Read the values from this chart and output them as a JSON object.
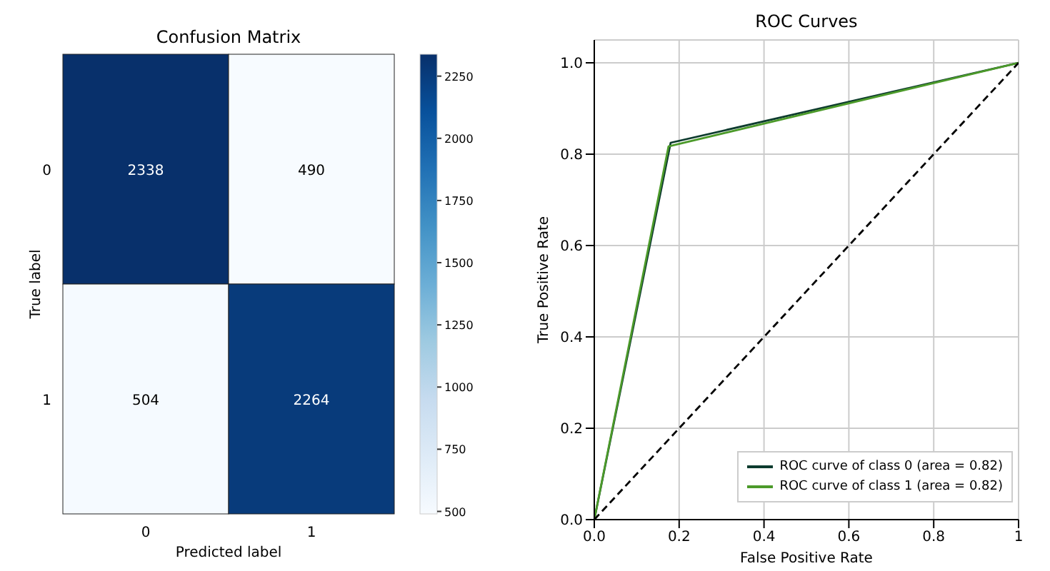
{
  "chart_data": [
    {
      "type": "heatmap",
      "title": "Confusion Matrix",
      "xlabel": "Predicted label",
      "ylabel": "True label",
      "categories": [
        "0",
        "1"
      ],
      "y_categories": [
        "0",
        "1"
      ],
      "cells": [
        [
          2338,
          490
        ],
        [
          504,
          2264
        ]
      ],
      "data_labels": true,
      "clim": [
        490,
        2338
      ],
      "cticks": [
        500,
        750,
        1000,
        1250,
        1500,
        1750,
        2000,
        2250
      ]
    },
    {
      "type": "line",
      "title": "ROC Curves",
      "xlabel": "False Positive Rate",
      "ylabel": "True Positive Rate",
      "xlim": [
        0,
        1
      ],
      "ylim": [
        0,
        1.05
      ],
      "xticks": [
        {
          "value": 0,
          "label": "0.0"
        },
        {
          "value": 0.2,
          "label": "0.2"
        },
        {
          "value": 0.4,
          "label": "0.4"
        },
        {
          "value": 0.6,
          "label": "0.6"
        },
        {
          "value": 0.8,
          "label": "0.8"
        },
        {
          "value": 1,
          "label": "1"
        }
      ],
      "yticks": [
        {
          "value": 0,
          "label": "0.0"
        },
        {
          "value": 0.2,
          "label": "0.2"
        },
        {
          "value": 0.4,
          "label": "0.4"
        },
        {
          "value": 0.6,
          "label": "0.6"
        },
        {
          "value": 0.8,
          "label": "0.8"
        },
        {
          "value": 1,
          "label": "1.0"
        }
      ],
      "grid": true,
      "legend": "bottom right",
      "marker": "none",
      "series": [
        {
          "name": "ROC curve of class 0 (area = 0.82)",
          "color": "#0d3b2e",
          "x": [
            0,
            0.18,
            1
          ],
          "values": [
            0,
            0.825,
            1
          ],
          "line_style": "solid"
        },
        {
          "name": "ROC curve of class 1 (area = 0.82)",
          "color": "#4c9a2a",
          "x": [
            0,
            0.175,
            1
          ],
          "values": [
            0,
            0.817,
            1
          ],
          "line_style": "solid"
        },
        {
          "color": "#000000",
          "x": [
            0,
            1
          ],
          "values": [
            0,
            1
          ],
          "line_style": "dashed"
        }
      ]
    }
  ]
}
